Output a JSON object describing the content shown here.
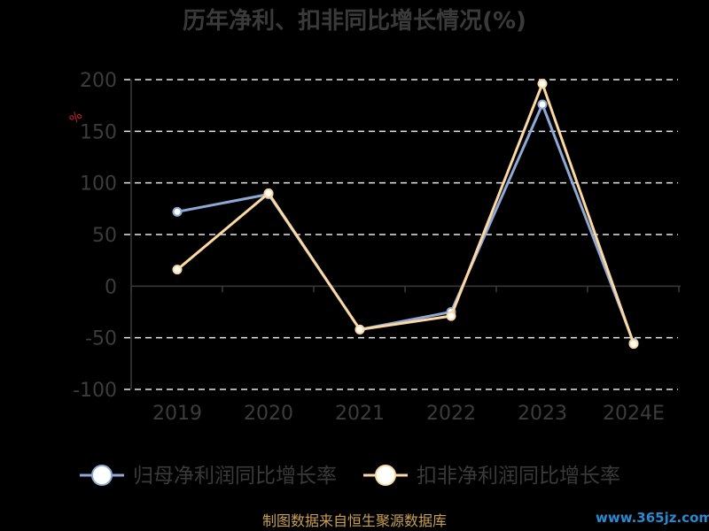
{
  "colors": {
    "background": "#000000",
    "series_1": "#8fa9d6",
    "series_2": "#fcd9a3",
    "grid": "#e6e6e6",
    "axis": "#3a3a3a",
    "text": "#3a3a3a",
    "unit": "#d42020",
    "source": "#c8a050",
    "watermark": "#2a8ad0"
  },
  "source_note": "制图数据来自恒生聚源数据库",
  "watermark": "www.365jz.com",
  "chart_data": {
    "type": "line",
    "title": "历年净利、扣非同比增长情况(%)",
    "ylabel": "%",
    "xlabel": "",
    "categories": [
      "2019",
      "2020",
      "2021",
      "2022",
      "2023",
      "2024E"
    ],
    "yticks": [
      "200",
      "150",
      "100",
      "50",
      "0",
      "-50",
      "-100"
    ],
    "ylim": [
      -100,
      200
    ],
    "grid": true,
    "grid_style": "dashed",
    "legend_position": "bottom",
    "series": [
      {
        "name": "归母净利润同比增长率",
        "values": [
          72,
          89,
          -42,
          -25,
          176,
          -55
        ]
      },
      {
        "name": "扣非净利润同比增长率",
        "values": [
          16,
          90,
          -42,
          -29,
          196,
          -56
        ]
      }
    ]
  }
}
